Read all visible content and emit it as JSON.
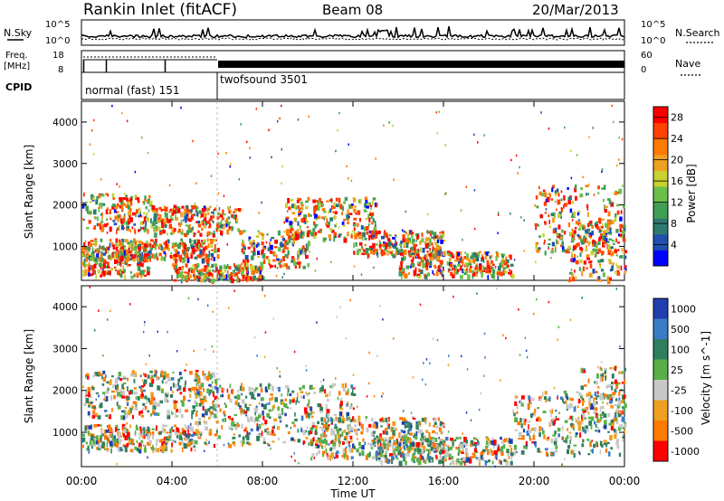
{
  "header": {
    "title": "Rankin Inlet (fitACF)",
    "beam": "Beam 08",
    "date": "20/Mar/2013"
  },
  "panels": {
    "nsky_label": "N.Sky",
    "nsky_ticks": [
      "10^5",
      "10^0"
    ],
    "nsearch_label": "N.Search",
    "nsearch_ticks": [
      "10^5",
      "10^0"
    ],
    "freq_label_1": "Freq.",
    "freq_label_2": "[MHz]",
    "freq_ticks": [
      "18",
      "8"
    ],
    "nave_label": "Nave",
    "nave_ticks": [
      "60",
      "0"
    ],
    "cpid_label": "CPID",
    "cpid_1": "normal (fast) 151",
    "cpid_2": "twofsound 3501",
    "cpid_switch_hour": 6.0
  },
  "chart_data": [
    {
      "type": "heatmap",
      "title": "",
      "xlabel": "Time UT",
      "ylabel": "Slant Range [km]",
      "x_ticks": [
        "00:00",
        "04:00",
        "08:00",
        "12:00",
        "16:00",
        "20:00",
        "00:00"
      ],
      "xlim_hours": [
        0,
        24
      ],
      "y_ticks": [
        "1000",
        "2000",
        "3000",
        "4000"
      ],
      "ylim": [
        180,
        4500
      ],
      "colorbar": {
        "label": "Power [dB]",
        "ticks": [
          "4",
          "8",
          "12",
          "16",
          "20",
          "24",
          "28"
        ],
        "range": [
          0,
          30
        ],
        "colors": [
          "#0000ff",
          "#1f4fb0",
          "#2e7a6e",
          "#3f9f55",
          "#6cc04a",
          "#c8d232",
          "#f0a020",
          "#ff7a00",
          "#ff4000",
          "#ff0000"
        ]
      },
      "echo_regions_hours_km": [
        [
          0.0,
          3.0,
          300,
          900
        ],
        [
          0.0,
          6.0,
          700,
          1200
        ],
        [
          0.0,
          3.0,
          1400,
          2300
        ],
        [
          3.0,
          7.0,
          1300,
          2000
        ],
        [
          4.0,
          8.0,
          200,
          600
        ],
        [
          7.0,
          10.0,
          500,
          1400
        ],
        [
          9.0,
          13.0,
          1200,
          2200
        ],
        [
          12.0,
          16.0,
          800,
          1400
        ],
        [
          14.0,
          19.0,
          300,
          900
        ],
        [
          20.0,
          24.0,
          800,
          2500
        ],
        [
          21.5,
          24.0,
          200,
          1600
        ]
      ]
    },
    {
      "type": "heatmap",
      "title": "",
      "xlabel": "Time UT",
      "ylabel": "Slant Range [km]",
      "x_ticks": [
        "00:00",
        "04:00",
        "08:00",
        "12:00",
        "16:00",
        "20:00",
        "00:00"
      ],
      "xlim_hours": [
        0,
        24
      ],
      "y_ticks": [
        "1000",
        "2000",
        "3000",
        "4000"
      ],
      "ylim": [
        180,
        4500
      ],
      "colorbar": {
        "label": "Velocity [m s^-1]",
        "ticks": [
          "1000",
          "500",
          "100",
          "25",
          "-25",
          "-100",
          "-500",
          "-1000"
        ],
        "colors": [
          "#1f3fb0",
          "#3a7cc8",
          "#2f7f5f",
          "#58b048",
          "#c8c8c8",
          "#f0a020",
          "#ff7a00",
          "#ff0000"
        ]
      },
      "echo_regions_hours_km": [
        [
          0.0,
          6.0,
          1400,
          2500
        ],
        [
          0.0,
          5.0,
          600,
          1200
        ],
        [
          5.0,
          12.0,
          700,
          2200
        ],
        [
          10.0,
          16.0,
          400,
          1400
        ],
        [
          13.0,
          19.0,
          300,
          900
        ],
        [
          19.0,
          24.0,
          500,
          2000
        ],
        [
          22.0,
          24.0,
          1200,
          2600
        ]
      ]
    }
  ]
}
